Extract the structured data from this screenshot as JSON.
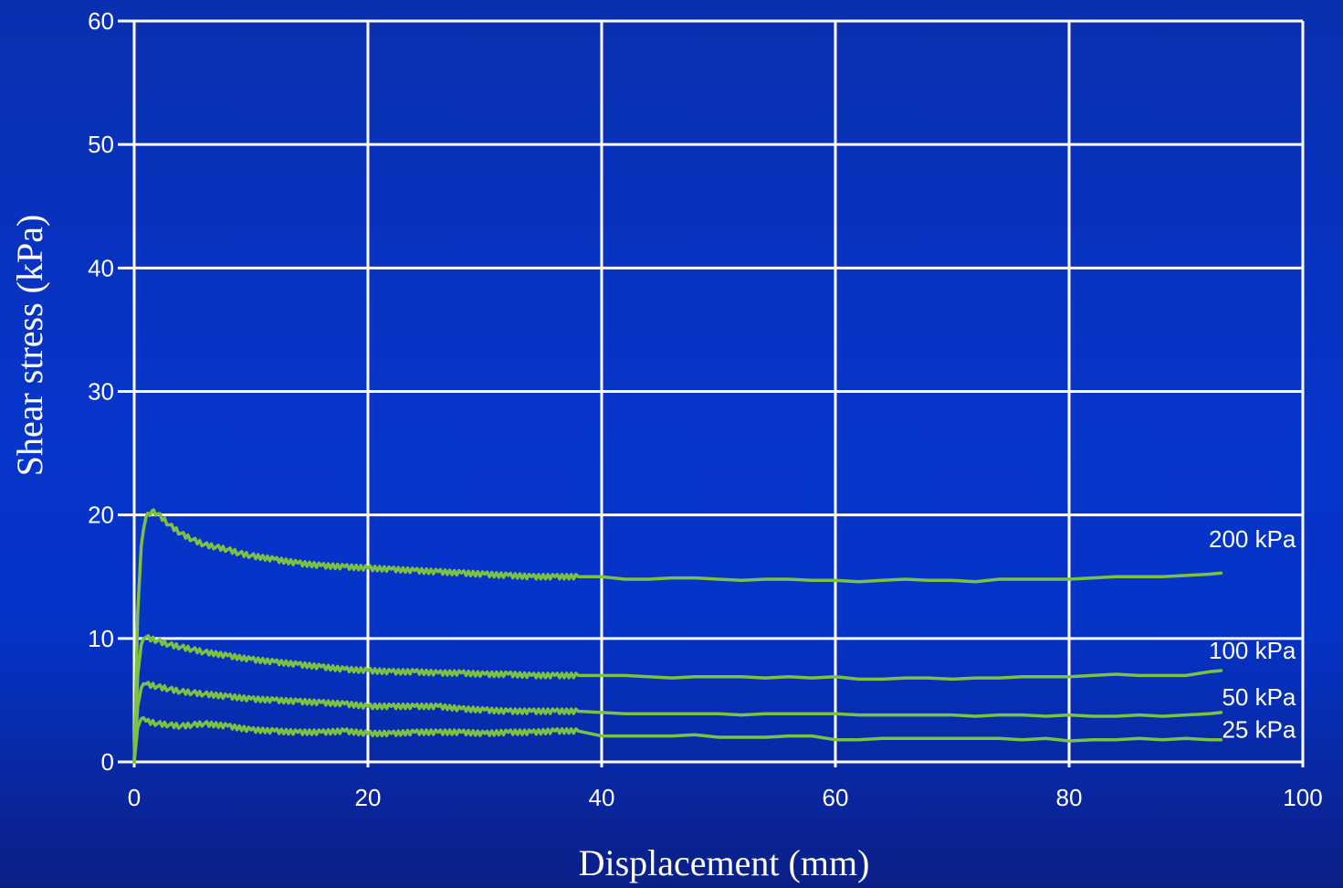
{
  "chart_data": {
    "type": "line",
    "xlabel": "Displacement (mm)",
    "ylabel": "Shear stress (kPa)",
    "xlim": [
      0,
      100
    ],
    "ylim": [
      0,
      60
    ],
    "xticks": [
      0,
      20,
      40,
      60,
      80,
      100
    ],
    "yticks": [
      0,
      10,
      20,
      30,
      40,
      50,
      60
    ],
    "x_tick_labels": [
      "0",
      "20",
      "40",
      "60",
      "80",
      "100"
    ],
    "y_tick_labels": [
      "0",
      "10",
      "20",
      "30",
      "40",
      "50",
      "60"
    ],
    "grid": true,
    "legend": "none",
    "line_color": "#7dc142",
    "series": [
      {
        "name": "200 kPa",
        "x": [
          0,
          0.3,
          0.6,
          1,
          1.5,
          2,
          3,
          4,
          5,
          6,
          7,
          8,
          9,
          10,
          12,
          14,
          16,
          18,
          20,
          22,
          24,
          26,
          28,
          30,
          32,
          34,
          36,
          38,
          40,
          42,
          44,
          46,
          48,
          50,
          52,
          54,
          56,
          58,
          60,
          62,
          64,
          66,
          68,
          70,
          72,
          74,
          76,
          78,
          80,
          82,
          84,
          86,
          88,
          90,
          92,
          93
        ],
        "y": [
          0,
          12,
          17.5,
          19.8,
          20.3,
          20.1,
          19.2,
          18.5,
          18.0,
          17.6,
          17.4,
          17.2,
          16.9,
          16.7,
          16.4,
          16.1,
          15.9,
          15.8,
          15.7,
          15.6,
          15.5,
          15.4,
          15.3,
          15.2,
          15.1,
          15.0,
          15.0,
          15.0,
          15.0,
          14.8,
          14.8,
          14.9,
          14.9,
          14.8,
          14.7,
          14.8,
          14.8,
          14.7,
          14.7,
          14.6,
          14.7,
          14.8,
          14.7,
          14.7,
          14.6,
          14.8,
          14.8,
          14.8,
          14.8,
          14.9,
          15.0,
          15.0,
          15.0,
          15.1,
          15.2,
          15.3
        ]
      },
      {
        "name": "100 kPa",
        "x": [
          0,
          0.3,
          0.6,
          1,
          2,
          3,
          4,
          5,
          6,
          8,
          10,
          12,
          14,
          16,
          18,
          20,
          22,
          24,
          26,
          28,
          30,
          32,
          34,
          36,
          38,
          40,
          42,
          44,
          46,
          48,
          50,
          52,
          54,
          56,
          58,
          60,
          62,
          64,
          66,
          68,
          70,
          72,
          74,
          76,
          78,
          80,
          82,
          84,
          86,
          88,
          90,
          92,
          93
        ],
        "y": [
          0,
          7,
          9.5,
          10.1,
          9.8,
          9.5,
          9.3,
          9.1,
          8.9,
          8.6,
          8.3,
          8.1,
          7.9,
          7.7,
          7.5,
          7.4,
          7.3,
          7.3,
          7.2,
          7.2,
          7.1,
          7.1,
          7.0,
          7.0,
          7.0,
          7.0,
          7.0,
          6.9,
          6.8,
          6.9,
          6.9,
          6.9,
          6.8,
          6.9,
          6.8,
          6.9,
          6.7,
          6.7,
          6.8,
          6.8,
          6.7,
          6.8,
          6.8,
          6.9,
          6.9,
          6.9,
          7.0,
          7.1,
          7.0,
          7.0,
          7.0,
          7.3,
          7.4
        ]
      },
      {
        "name": "50 kPa",
        "x": [
          0,
          0.3,
          0.6,
          1,
          2,
          3,
          4,
          5,
          6,
          8,
          10,
          12,
          14,
          16,
          18,
          20,
          22,
          24,
          26,
          28,
          30,
          32,
          34,
          36,
          38,
          40,
          42,
          44,
          46,
          48,
          50,
          52,
          54,
          56,
          58,
          60,
          62,
          64,
          66,
          68,
          70,
          72,
          74,
          76,
          78,
          80,
          82,
          84,
          86,
          88,
          90,
          92,
          93
        ],
        "y": [
          0,
          4.5,
          6.0,
          6.3,
          6.1,
          5.9,
          5.7,
          5.6,
          5.5,
          5.3,
          5.1,
          5.0,
          4.9,
          4.8,
          4.7,
          4.5,
          4.5,
          4.5,
          4.5,
          4.3,
          4.2,
          4.1,
          4.1,
          4.1,
          4.1,
          4.0,
          3.9,
          3.9,
          3.9,
          3.9,
          3.9,
          3.8,
          3.9,
          3.9,
          3.9,
          3.9,
          3.8,
          3.8,
          3.8,
          3.8,
          3.8,
          3.7,
          3.8,
          3.8,
          3.7,
          3.8,
          3.7,
          3.7,
          3.8,
          3.7,
          3.8,
          3.9,
          4.0
        ]
      },
      {
        "name": "25 kPa",
        "x": [
          0,
          0.3,
          0.6,
          1,
          2,
          3,
          4,
          5,
          6,
          8,
          10,
          12,
          14,
          16,
          18,
          20,
          22,
          24,
          26,
          28,
          30,
          32,
          34,
          36,
          38,
          40,
          42,
          44,
          46,
          48,
          50,
          52,
          54,
          56,
          58,
          60,
          62,
          64,
          66,
          68,
          70,
          72,
          74,
          76,
          78,
          80,
          82,
          84,
          86,
          88,
          90,
          92,
          93
        ],
        "y": [
          0,
          2.8,
          3.5,
          3.3,
          3.1,
          3.0,
          2.9,
          3.0,
          3.1,
          2.9,
          2.6,
          2.5,
          2.4,
          2.4,
          2.5,
          2.3,
          2.3,
          2.4,
          2.4,
          2.4,
          2.3,
          2.4,
          2.4,
          2.5,
          2.5,
          2.1,
          2.1,
          2.1,
          2.1,
          2.2,
          2.0,
          2.0,
          2.0,
          2.1,
          2.1,
          1.8,
          1.8,
          1.9,
          1.9,
          1.9,
          1.9,
          1.9,
          1.9,
          1.8,
          1.9,
          1.7,
          1.8,
          1.8,
          1.9,
          1.8,
          1.9,
          1.8,
          1.8
        ]
      }
    ]
  }
}
